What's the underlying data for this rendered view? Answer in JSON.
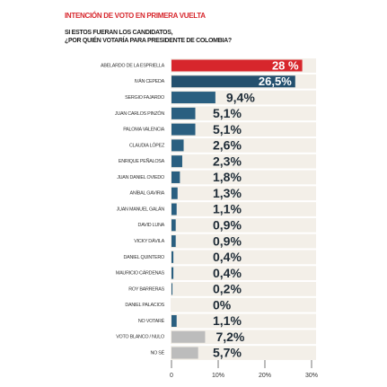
{
  "chart_data": {
    "type": "barh",
    "title": "INTENCIÓN DE VOTO EN PRIMERA VUELTA",
    "subtitle": [
      "SI ESTOS FUERAN LOS CANDIDATOS,",
      "¿POR QUIÉN VOTARÍA PARA PRESIDENTE DE COLOMBIA?"
    ],
    "categories": [
      "ABELARDO DE LA ESPRIELLA",
      "IVÁN CEPEDA",
      "SERGIO FAJARDO",
      "JUAN CARLOS PINZÓN",
      "PALOMA VALENCIA",
      "CLAUDIA LÓPEZ",
      "ENRIQUE PEÑALOSA",
      "JUAN DANIEL OVIEDO",
      "ANÍBAL GAVIRIA",
      "JUAN MANUEL GALÁN",
      "DAVID LUNA",
      "VICKY DÁVILA",
      "DANIEL QUINTERO",
      "MAURICIO CÁRDENAS",
      "ROY BARRERAS",
      "DANIEL PALACIOS",
      "NO VOTARÉ",
      "VOTO BLANCO / NULO",
      "NO SÉ"
    ],
    "values": [
      28,
      26.5,
      9.4,
      5.1,
      5.1,
      2.6,
      2.3,
      1.8,
      1.3,
      1.1,
      0.9,
      0.9,
      0.4,
      0.4,
      0.2,
      0,
      1.1,
      7.2,
      5.7
    ],
    "value_labels": [
      "28 %",
      "26,5%",
      "9,4%",
      "5,1%",
      "5,1%",
      "2,6%",
      "2,3%",
      "1,8%",
      "1,3%",
      "1,1%",
      "0,9%",
      "0,9%",
      "0,4%",
      "0,4%",
      "0,2%",
      "0%",
      "1,1%",
      "7,2%",
      "5,7%"
    ],
    "colors": [
      "#d7262c",
      "#24506e",
      "#2a5f80",
      "#2a5f80",
      "#2a5f80",
      "#2a5f80",
      "#2a5f80",
      "#2a5f80",
      "#2a5f80",
      "#2a5f80",
      "#2a5f80",
      "#2a5f80",
      "#2a5f80",
      "#2a5f80",
      "#2a5f80",
      "#2a5f80",
      "#2a5f80",
      "#bcbcbc",
      "#bcbcbc"
    ],
    "xlim": [
      0,
      30
    ],
    "xticks": [
      0,
      {
        "value": 10,
        "label": "10%"
      },
      {
        "value": 20,
        "label": "20%"
      },
      {
        "value": 30,
        "label": "30%"
      }
    ]
  }
}
